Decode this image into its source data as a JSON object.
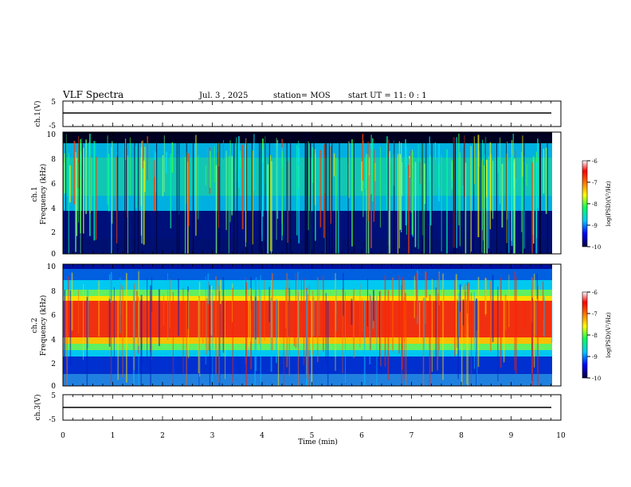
{
  "header": {
    "title": "VLF Spectra",
    "date": "Jul. 3 , 2025",
    "station": "station= MOS",
    "start": "start UT = 11: 0 : 1"
  },
  "chart_data": [
    {
      "type": "line",
      "ylabel": "ch.1(V)",
      "ylim": [
        -5,
        5
      ],
      "yticks": [
        "5",
        "-5"
      ],
      "xlim": [
        0,
        10
      ],
      "level": 0.0
    },
    {
      "type": "heatmap",
      "ylabel": "ch.1\nFrequency (kHz)",
      "ylabel_a": "ch.1",
      "ylabel_b": "Frequency (kHz)",
      "xlim": [
        0,
        10
      ],
      "ylim": [
        0,
        10
      ],
      "yticks": [
        "0",
        "2",
        "4",
        "6",
        "8",
        "10"
      ],
      "colorbar": {
        "label": "log(PSD)(V²/Hz)",
        "ticks": [
          "-6",
          "-7",
          "-8",
          "-9",
          "-10"
        ],
        "range": [
          -10,
          -6
        ]
      },
      "band_low_khz": 3.5,
      "band_high_khz": 9.5
    },
    {
      "type": "heatmap",
      "ylabel": "ch.2\nFrequency (kHz)",
      "ylabel_a": "ch.2",
      "ylabel_b": "Frequency (kHz)",
      "xlim": [
        0,
        10
      ],
      "ylim": [
        0,
        10
      ],
      "yticks": [
        "0",
        "2",
        "4",
        "6",
        "8",
        "10"
      ],
      "colorbar": {
        "label": "log(PSD)(V²/Hz)",
        "ticks": [
          "-6",
          "-7",
          "-8",
          "-9",
          "-10"
        ],
        "range": [
          -10,
          -6
        ]
      },
      "peak_band_khz": [
        4.5,
        7.5
      ]
    },
    {
      "type": "line",
      "ylabel": "ch.3(V)",
      "ylim": [
        -5,
        5
      ],
      "yticks": [
        "5",
        "-5"
      ],
      "xlim": [
        0,
        10
      ],
      "level": 0.0,
      "xlabel": "Time (min)",
      "xticks": [
        "0",
        "1",
        "2",
        "3",
        "4",
        "5",
        "6",
        "7",
        "8",
        "9",
        "10"
      ]
    }
  ]
}
